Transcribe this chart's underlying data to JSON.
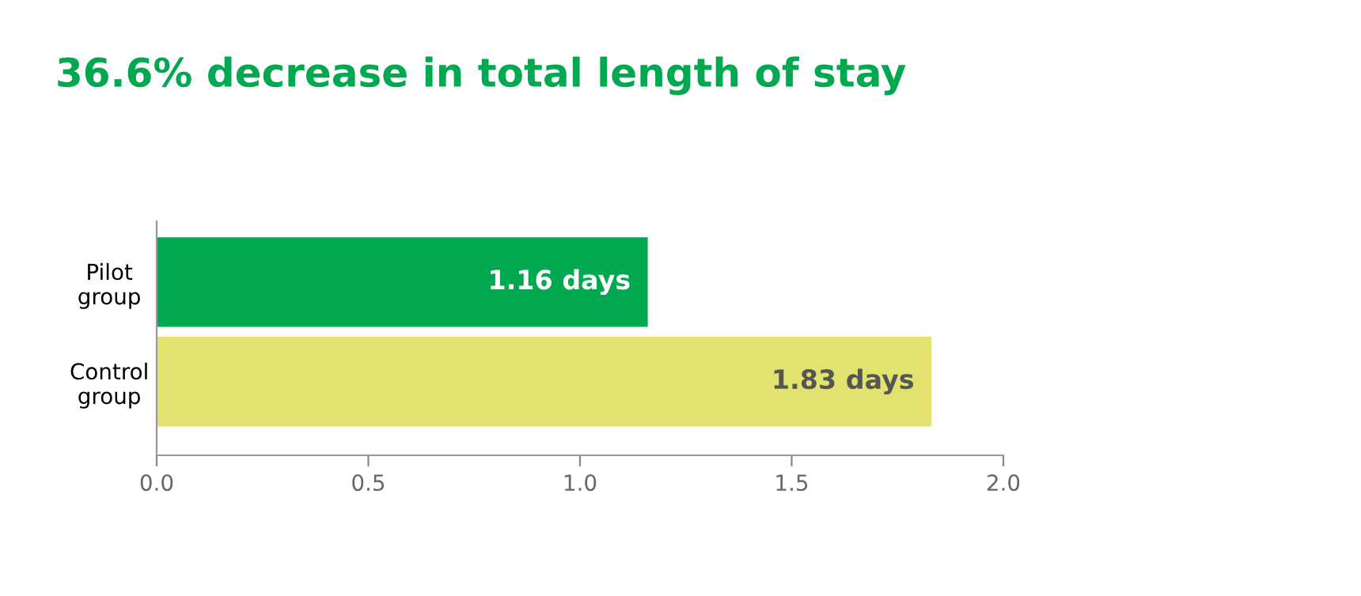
{
  "chart_data": {
    "type": "bar",
    "orientation": "horizontal",
    "title": "36.6% decrease in total length of stay",
    "categories": [
      "Pilot\ngroup",
      "Control\ngroup"
    ],
    "values": [
      1.16,
      1.83
    ],
    "colors": [
      "#00a84f",
      "#e1e36e"
    ],
    "value_labels": [
      "1.16 days",
      "1.83 days"
    ],
    "xlim": [
      0,
      2.0
    ],
    "xticks": [
      {
        "value": 0,
        "label": "0.0"
      },
      {
        "value": 0.5,
        "label": "0.5"
      },
      {
        "value": 1.0,
        "label": "1.0"
      },
      {
        "value": 1.5,
        "label": "1.5"
      },
      {
        "value": 2.0,
        "label": "2.0"
      }
    ],
    "grid": false,
    "legend": false
  }
}
